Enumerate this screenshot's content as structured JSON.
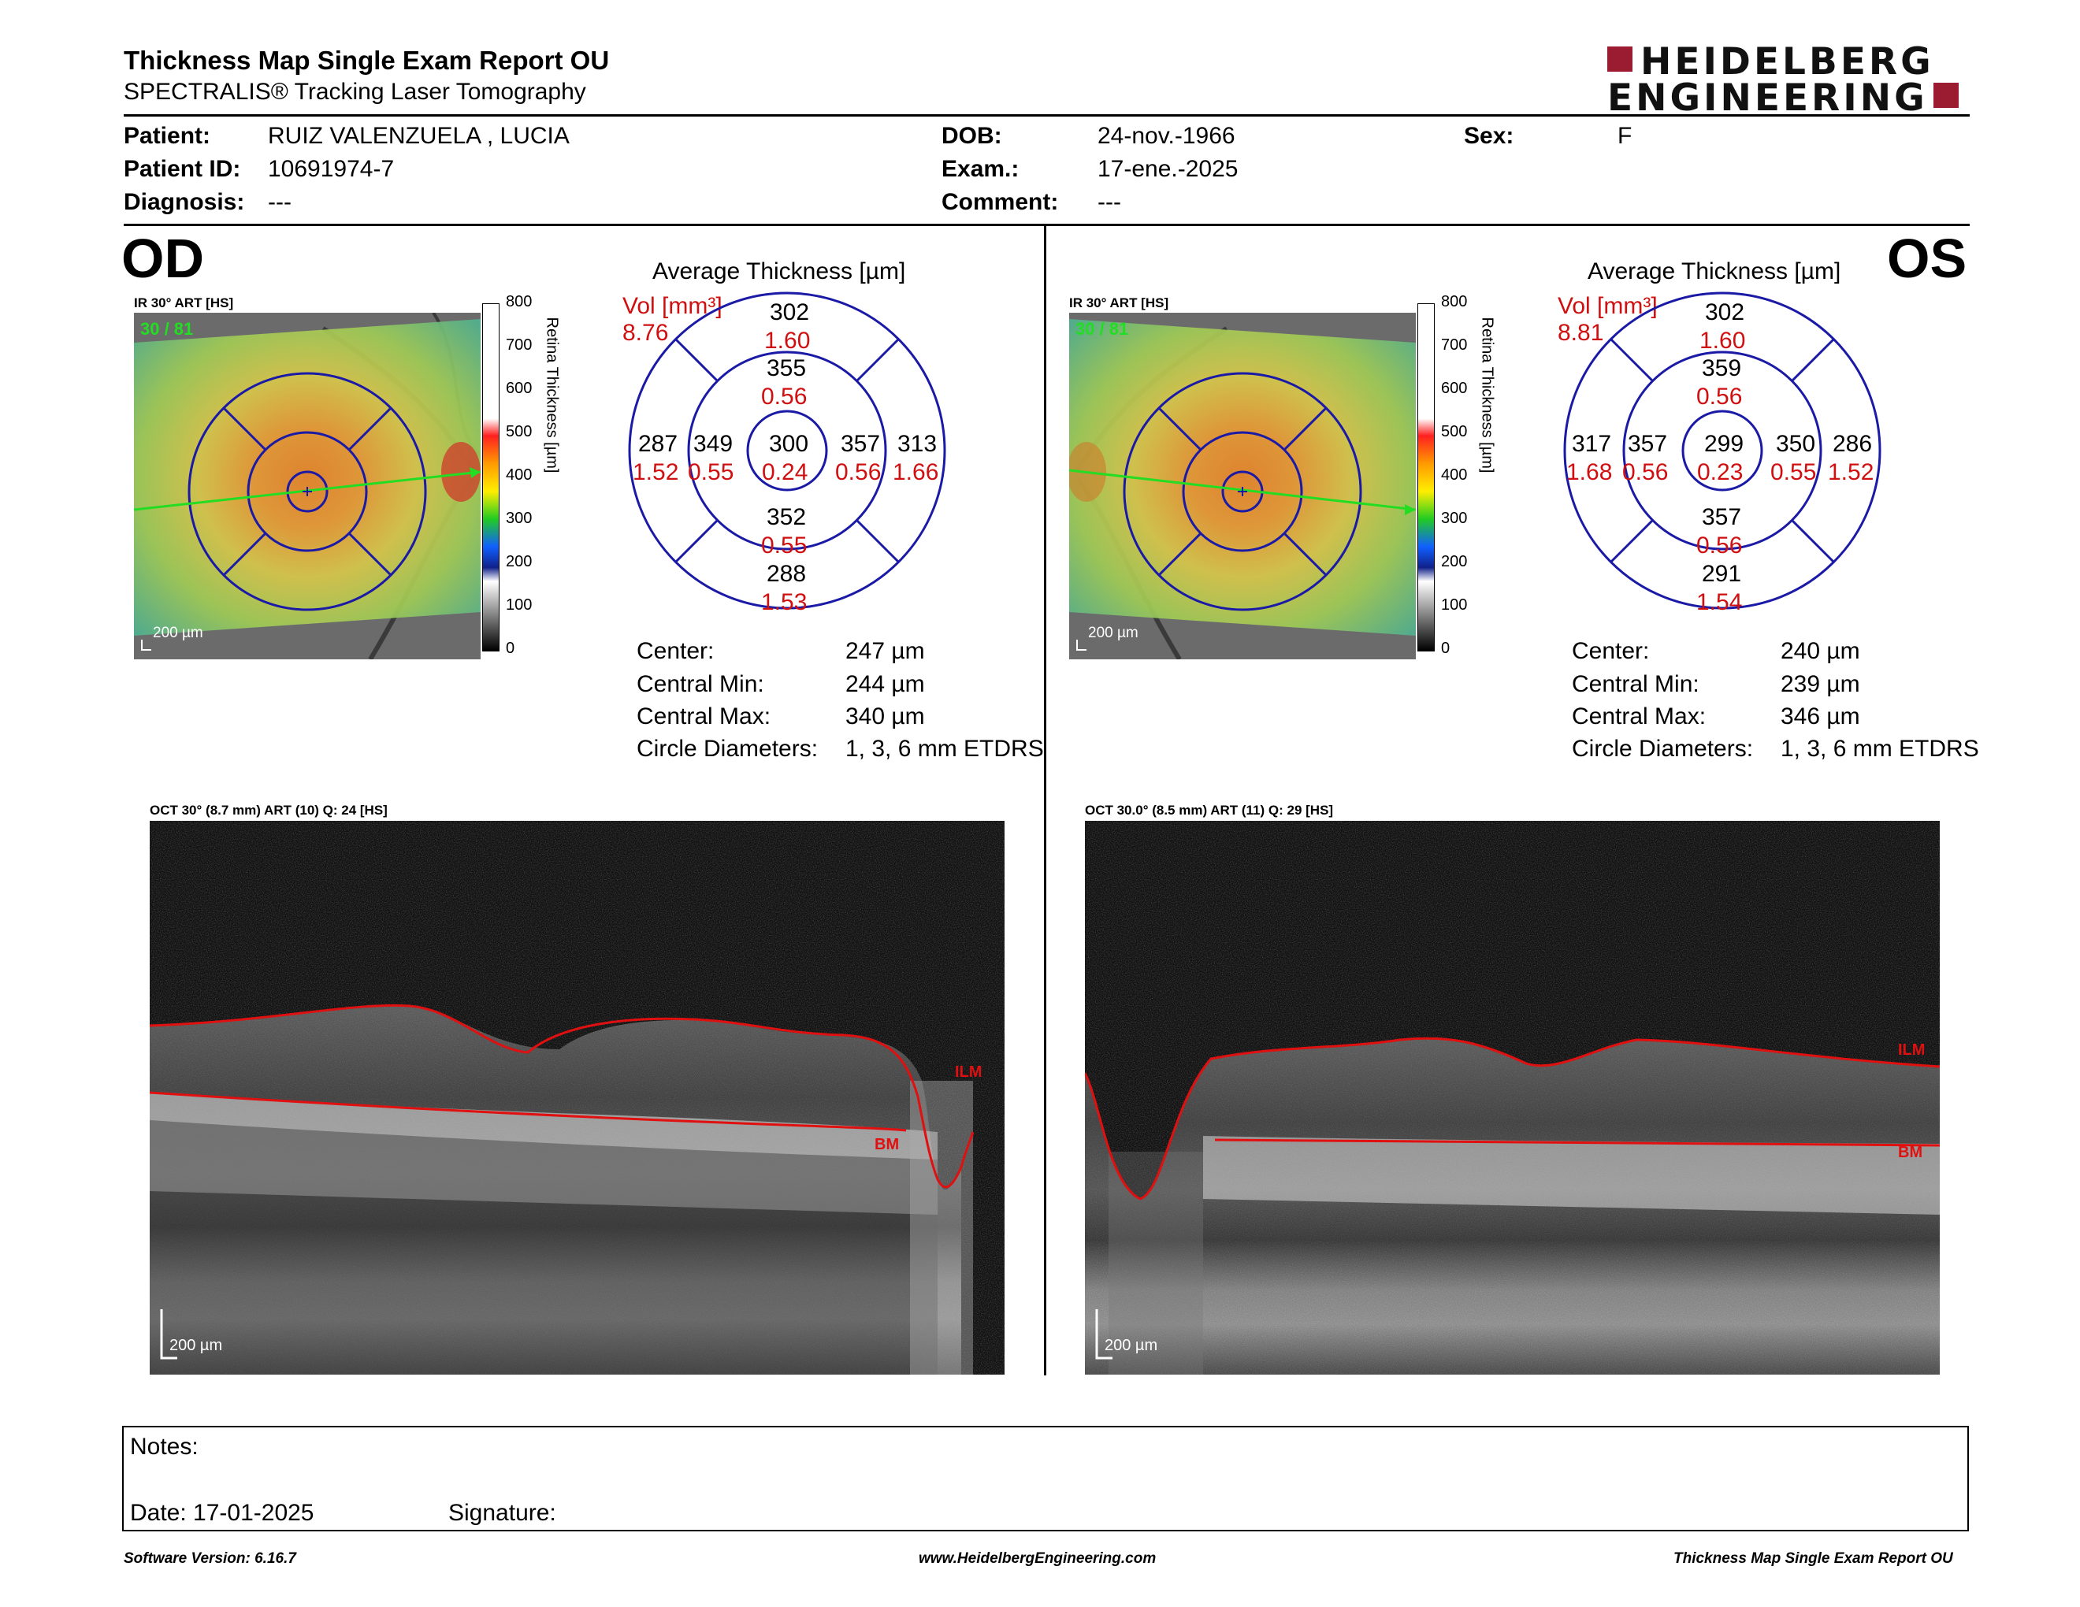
{
  "header": {
    "title": "Thickness Map Single Exam Report OU",
    "subtitle": "SPECTRALIS® Tracking Laser Tomography",
    "logo_line1": "HEIDELBERG",
    "logo_line2": "ENGINEERING"
  },
  "patient": {
    "patient_label": "Patient:",
    "patient_value": "RUIZ VALENZUELA , LUCIA",
    "id_label": "Patient ID:",
    "id_value": "10691974-7",
    "diagnosis_label": "Diagnosis:",
    "diagnosis_value": "---",
    "dob_label": "DOB:",
    "dob_value": "24-nov.-1966",
    "exam_label": "Exam.:",
    "exam_value": "17-ene.-2025",
    "comment_label": "Comment:",
    "comment_value": "---",
    "sex_label": "Sex:",
    "sex_value": "F"
  },
  "od": {
    "eye_label": "OD",
    "ir_label": "IR 30° ART [HS]",
    "ir_counter": "30 / 81",
    "scale_bar": "200 µm",
    "avg_title": "Average Thickness [µm]",
    "vol_label": "Vol [mm³]",
    "vol_value": "8.76",
    "grid": {
      "outer_top": "302",
      "outer_top_vol": "1.60",
      "inner_top": "355",
      "inner_top_vol": "0.56",
      "outer_left": "287",
      "outer_left_vol": "1.52",
      "inner_left": "349",
      "inner_left_vol": "0.55",
      "center": "300",
      "center_vol": "0.24",
      "inner_right": "357",
      "inner_right_vol": "0.56",
      "outer_right": "313",
      "outer_right_vol": "1.66",
      "inner_bottom": "352",
      "inner_bottom_vol": "0.55",
      "outer_bottom": "288",
      "outer_bottom_vol": "1.53"
    },
    "stats": {
      "center_label": "Center:",
      "center_value": "247 µm",
      "min_label": "Central Min:",
      "min_value": "244 µm",
      "max_label": "Central Max:",
      "max_value": "340 µm",
      "diam_label": "Circle Diameters:",
      "diam_value": "1, 3, 6 mm ETDRS"
    },
    "oct_label": "OCT 30° (8.7 mm) ART (10) Q: 24 [HS]",
    "oct_scale": "200 µm",
    "ilm": "ILM",
    "bm": "BM"
  },
  "os": {
    "eye_label": "OS",
    "ir_label": "IR 30° ART [HS]",
    "ir_counter": "30 / 81",
    "scale_bar": "200 µm",
    "avg_title": "Average Thickness [µm]",
    "vol_label": "Vol [mm³]",
    "vol_value": "8.81",
    "grid": {
      "outer_top": "302",
      "outer_top_vol": "1.60",
      "inner_top": "359",
      "inner_top_vol": "0.56",
      "outer_left": "317",
      "outer_left_vol": "1.68",
      "inner_left": "357",
      "inner_left_vol": "0.56",
      "center": "299",
      "center_vol": "0.23",
      "inner_right": "350",
      "inner_right_vol": "0.55",
      "outer_right": "286",
      "outer_right_vol": "1.52",
      "inner_bottom": "357",
      "inner_bottom_vol": "0.56",
      "outer_bottom": "291",
      "outer_bottom_vol": "1.54"
    },
    "stats": {
      "center_label": "Center:",
      "center_value": "240 µm",
      "min_label": "Central Min:",
      "min_value": "239 µm",
      "max_label": "Central Max:",
      "max_value": "346 µm",
      "diam_label": "Circle Diameters:",
      "diam_value": "1, 3, 6 mm ETDRS"
    },
    "oct_label": "OCT 30.0° (8.5 mm) ART (11) Q: 29 [HS]",
    "oct_scale": "200 µm",
    "ilm": "ILM",
    "bm": "BM"
  },
  "colorbar": {
    "title": "Retina Thickness [µm]",
    "ticks": [
      "800",
      "700",
      "600",
      "500",
      "400",
      "300",
      "200",
      "100",
      "0"
    ]
  },
  "notes": {
    "notes_label": "Notes:",
    "date_label": "Date: 17-01-2025",
    "signature_label": "Signature:"
  },
  "footer": {
    "software": "Software Version: 6.16.7",
    "website": "www.HeidelbergEngineering.com",
    "report": "Thickness Map Single Exam Report OU"
  },
  "colors": {
    "accent_red": "#d01010",
    "grid_blue": "#1a1aa6",
    "logo_red": "#9b1b30",
    "scan_green": "#22dd22"
  }
}
